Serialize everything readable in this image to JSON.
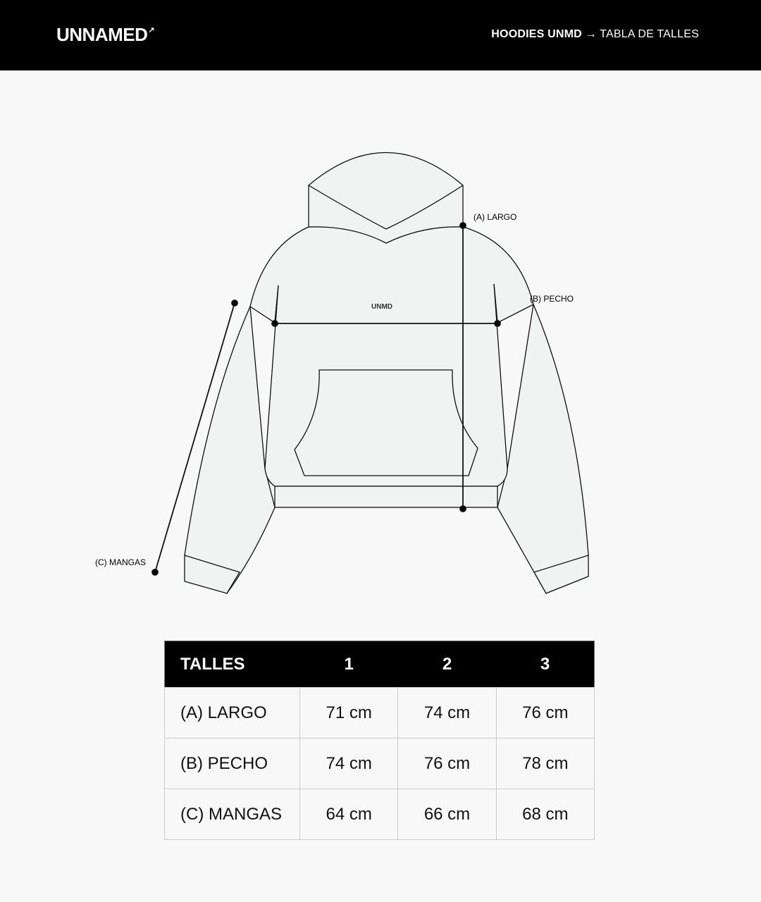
{
  "header": {
    "logo": "UNNAMED",
    "logo_mark": "↗",
    "breadcrumb_bold": "HOODIES UNMD",
    "breadcrumb_arrow": "→",
    "breadcrumb_page": "TABLA DE TALLES"
  },
  "diagram": {
    "chest_print": "UNMD",
    "labels": {
      "largo": "(A) LARGO",
      "pecho": "(B) PECHO",
      "mangas": "(C) MANGAS"
    }
  },
  "size_table": {
    "headers": [
      "TALLES",
      "1",
      "2",
      "3"
    ],
    "rows": [
      {
        "label": "(A) LARGO",
        "values": [
          "71 cm",
          "74 cm",
          "76 cm"
        ]
      },
      {
        "label": "(B) PECHO",
        "values": [
          "74 cm",
          "76 cm",
          "78 cm"
        ]
      },
      {
        "label": "(C) MANGAS",
        "values": [
          "64 cm",
          "66 cm",
          "68 cm"
        ]
      }
    ]
  }
}
